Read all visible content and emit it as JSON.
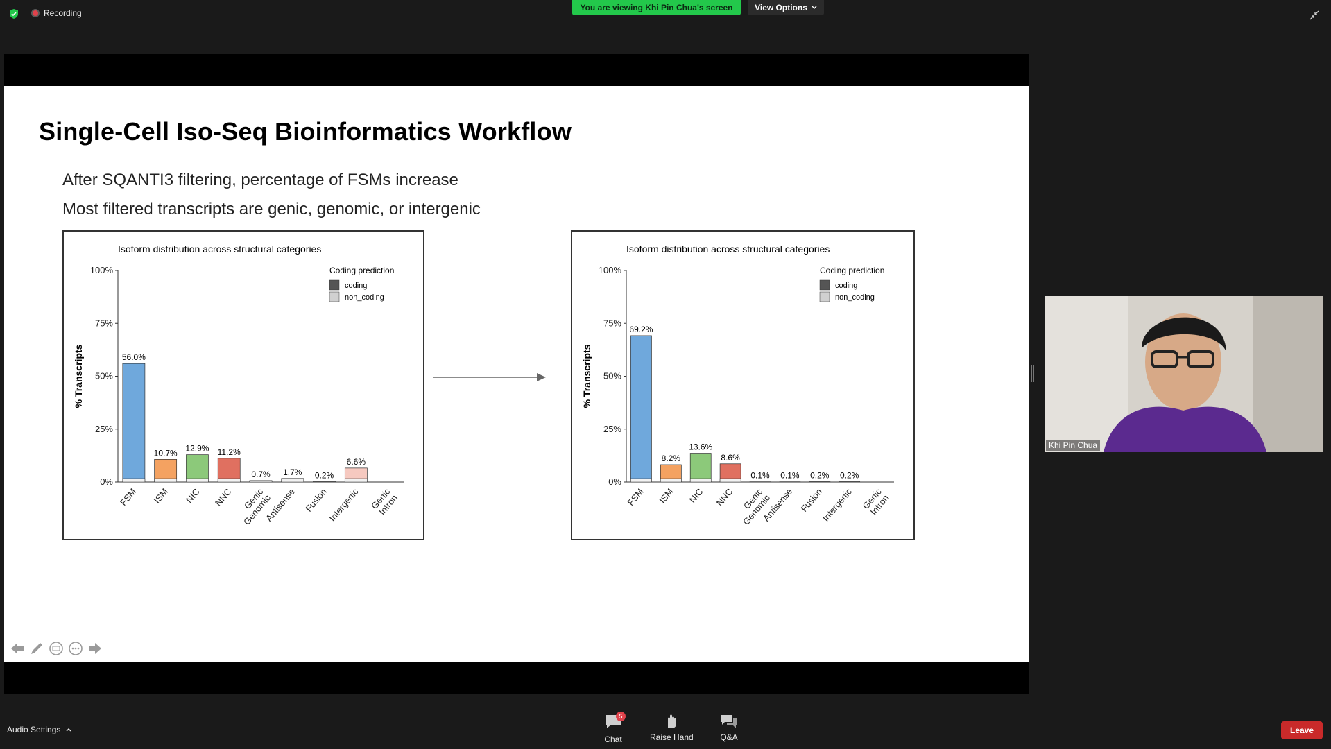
{
  "app": {
    "recording_label": "Recording",
    "banner_text": "You are viewing Khi Pin Chua's screen",
    "view_options_label": "View Options"
  },
  "slide": {
    "title": "Single-Cell Iso-Seq Bioinformatics Workflow",
    "bullets": [
      "After SQANTI3 filtering, percentage of FSMs increase",
      "Most filtered transcripts are genic, genomic, or intergenic"
    ]
  },
  "chart_data": [
    {
      "type": "bar",
      "title": "Isoform distribution across structural categories",
      "ylabel": "% Transcripts",
      "ylim": [
        0,
        100
      ],
      "yticks": [
        "0%",
        "25%",
        "50%",
        "75%",
        "100%"
      ],
      "categories": [
        "FSM",
        "ISM",
        "NIC",
        "NNC",
        "Genic Genomic",
        "Antisense",
        "Fusion",
        "Intergenic",
        "Genic Intron"
      ],
      "values": [
        56.0,
        10.7,
        12.9,
        11.2,
        0.7,
        1.7,
        0.2,
        6.6,
        0
      ],
      "labels": [
        "56.0%",
        "10.7%",
        "12.9%",
        "11.2%",
        "0.7%",
        "1.7%",
        "0.2%",
        "6.6%",
        ""
      ],
      "colors": [
        "#6fa8dc",
        "#f4a261",
        "#8cc97a",
        "#e07060",
        "#c9a0c9",
        "#6fc6b0",
        "#7f7f7f",
        "#f6c9c0",
        "#bfbfbf"
      ],
      "legend": {
        "title": "Coding prediction",
        "items": [
          "coding",
          "non_coding"
        ],
        "colors": [
          "#555555",
          "#d0d0d0"
        ],
        "position": "top-right"
      }
    },
    {
      "type": "bar",
      "title": "Isoform distribution across structural categories",
      "ylabel": "% Transcripts",
      "ylim": [
        0,
        100
      ],
      "yticks": [
        "0%",
        "25%",
        "50%",
        "75%",
        "100%"
      ],
      "categories": [
        "FSM",
        "ISM",
        "NIC",
        "NNC",
        "Genic Genomic",
        "Antisense",
        "Fusion",
        "Intergenic",
        "Genic Intron"
      ],
      "values": [
        69.2,
        8.2,
        13.6,
        8.6,
        0.1,
        0.1,
        0.2,
        0.2,
        0
      ],
      "labels": [
        "69.2%",
        "8.2%",
        "13.6%",
        "8.6%",
        "0.1%",
        "0.1%",
        "0.2%",
        "0.2%",
        ""
      ],
      "colors": [
        "#6fa8dc",
        "#f4a261",
        "#8cc97a",
        "#e07060",
        "#c9a0c9",
        "#6fc6b0",
        "#7f7f7f",
        "#f6c9c0",
        "#bfbfbf"
      ],
      "legend": {
        "title": "Coding prediction",
        "items": [
          "coding",
          "non_coding"
        ],
        "colors": [
          "#555555",
          "#d0d0d0"
        ],
        "position": "top-right"
      }
    }
  ],
  "video": {
    "participant_name": "Khi Pin Chua"
  },
  "bottom_bar": {
    "audio_settings_label": "Audio Settings",
    "chat_label": "Chat",
    "chat_badge": "5",
    "raise_hand_label": "Raise Hand",
    "qa_label": "Q&A",
    "leave_label": "Leave"
  },
  "colors": {
    "banner": "#23c84b",
    "leave": "#c92a2a",
    "background": "#1a1a1a"
  }
}
